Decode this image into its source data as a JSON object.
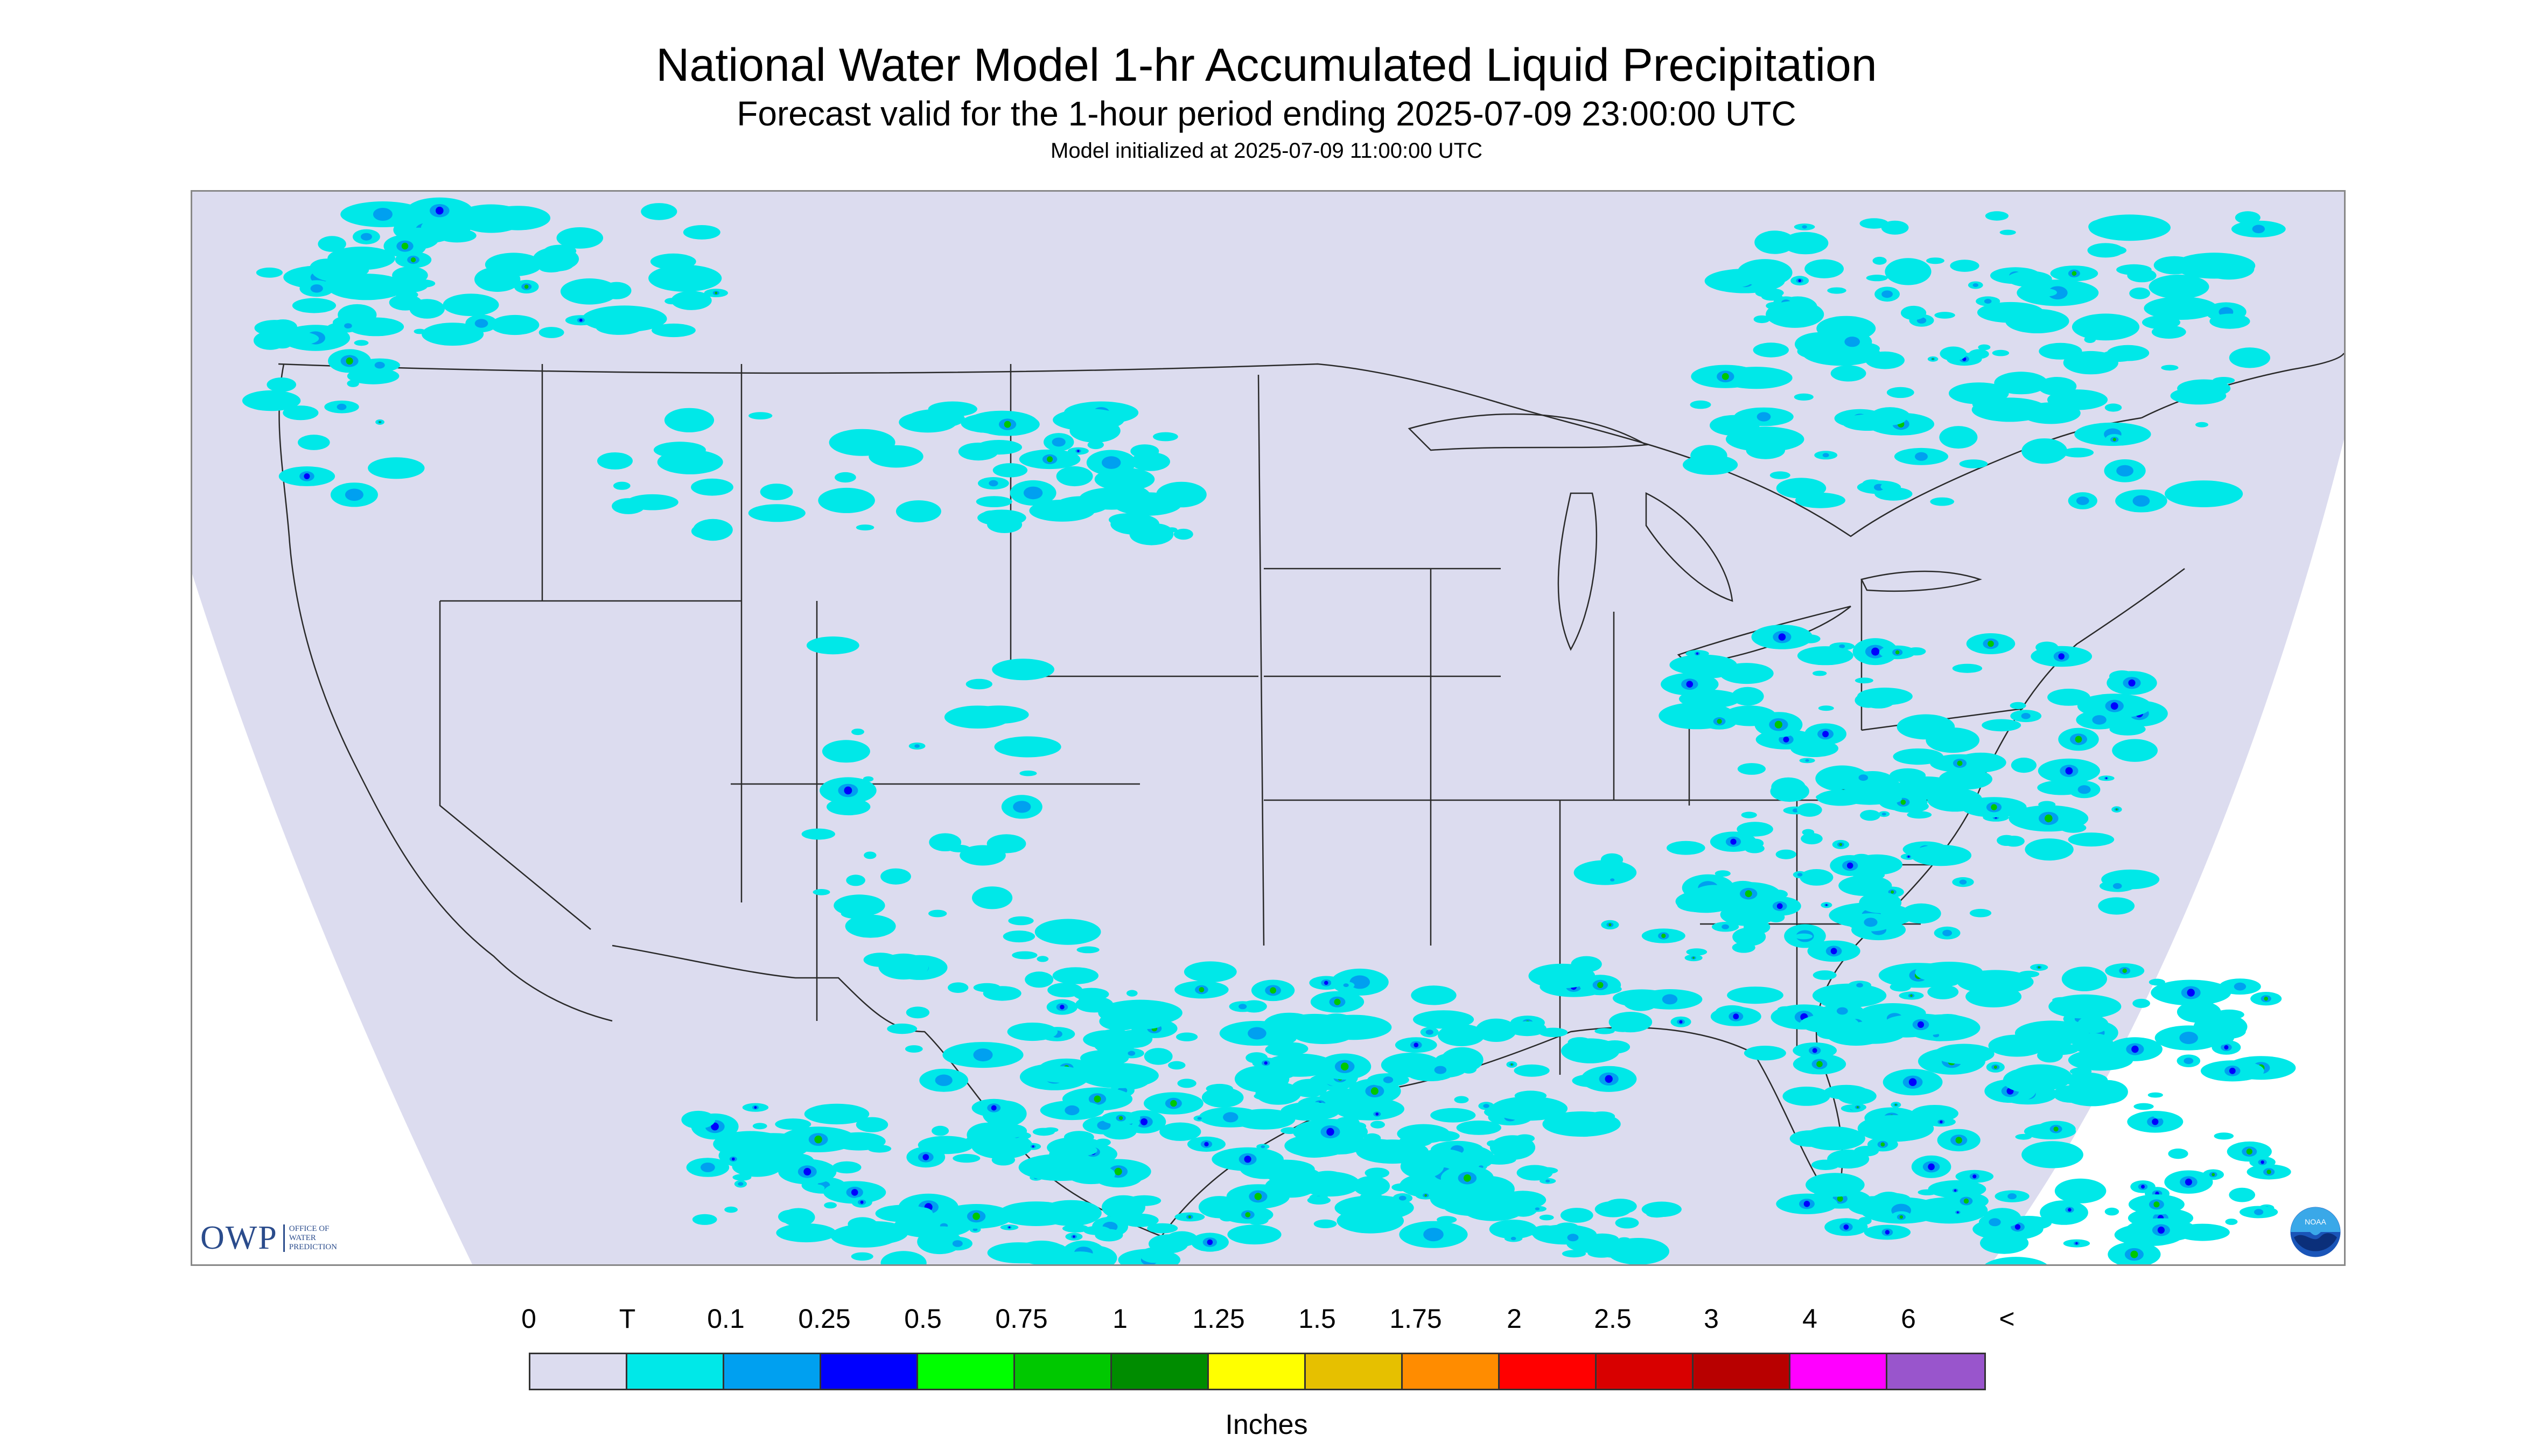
{
  "header": {
    "title": "National Water Model 1-hr Accumulated Liquid Precipitation",
    "subtitle": "Forecast valid for the 1-hour period ending 2025-07-09 23:00:00 UTC",
    "init": "Model initialized at 2025-07-09 11:00:00 UTC"
  },
  "logos": {
    "owp_word": "OWP",
    "owp_sub": [
      "OFFICE OF",
      "WATER",
      "PREDICTION"
    ],
    "noaa": "NOAA"
  },
  "colors": {
    "domain": "#dcdcef",
    "outside": "#ffffff",
    "boundary": "#2a2a2a"
  },
  "legend": {
    "labels": [
      "0",
      "T",
      "0.1",
      "0.25",
      "0.5",
      "0.75",
      "1",
      "1.25",
      "1.5",
      "1.75",
      "2",
      "2.5",
      "3",
      "4",
      "6",
      "<"
    ],
    "colors": [
      "#dcdcef",
      "#00e8e8",
      "#00a0f0",
      "#0000ff",
      "#00ff00",
      "#00c800",
      "#008c00",
      "#ffff00",
      "#e6c000",
      "#ff8c00",
      "#ff0000",
      "#d80000",
      "#b80000",
      "#ff00ff",
      "#9955cc"
    ],
    "units": "Inches"
  }
}
